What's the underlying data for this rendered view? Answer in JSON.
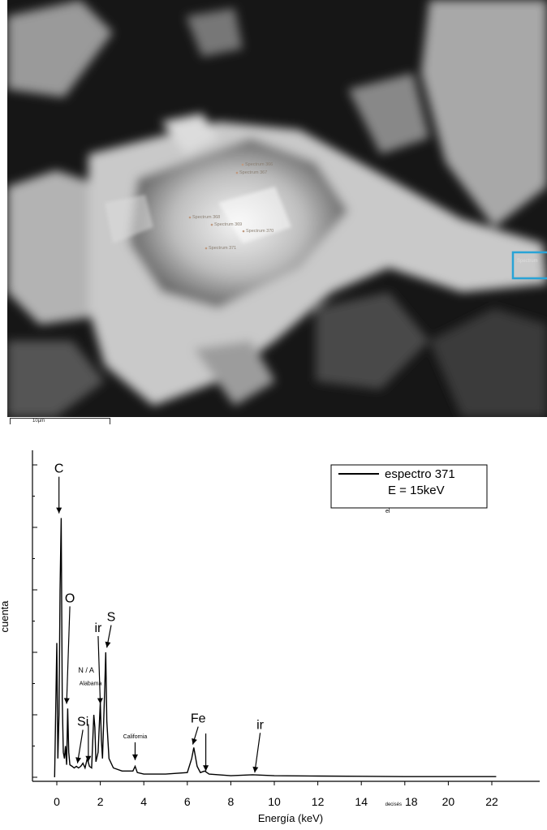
{
  "micrograph": {
    "spot_labels": [
      "Spectrum 366",
      "Spectrum 367",
      "Spectrum 368",
      "Spectrum 369",
      "Spectrum 370",
      "Spectrum 371"
    ],
    "scale_bar_label": "10µm"
  },
  "chart_data": {
    "type": "line",
    "title": "",
    "xlabel": "Energía (keV)",
    "ylabel": "cuenta",
    "xlim": [
      -1,
      22
    ],
    "x_ticks": [
      "0",
      "2",
      "4",
      "6",
      "8",
      "10",
      "12",
      "14",
      "decisés 18",
      "20",
      "22"
    ],
    "legend": {
      "entries": [
        "espectro 371",
        "E = 15keV"
      ],
      "note": "el",
      "position": "top-right"
    },
    "series": [
      {
        "name": "espectro 371",
        "x": [
          -0.1,
          0.0,
          0.05,
          0.1,
          0.15,
          0.2,
          0.25,
          0.3,
          0.35,
          0.4,
          0.45,
          0.5,
          0.55,
          0.6,
          0.7,
          0.8,
          0.9,
          1.0,
          1.1,
          1.2,
          1.3,
          1.4,
          1.5,
          1.6,
          1.7,
          1.75,
          1.8,
          1.9,
          2.0,
          2.05,
          2.1,
          2.2,
          2.25,
          2.3,
          2.4,
          2.6,
          3.0,
          3.5,
          3.6,
          3.7,
          4.0,
          5.0,
          6.0,
          6.2,
          6.3,
          6.45,
          6.6,
          6.8,
          6.9,
          7.0,
          8.0,
          9.0,
          10.0,
          12.0,
          14.0,
          16.0,
          18.0,
          20.2
        ],
        "y": [
          0.0,
          4.3,
          0.6,
          2.0,
          6.0,
          8.3,
          2.5,
          0.8,
          0.6,
          1.0,
          0.4,
          2.2,
          0.8,
          0.4,
          0.35,
          0.3,
          0.35,
          0.3,
          0.35,
          0.45,
          0.3,
          0.6,
          0.35,
          0.3,
          2.0,
          1.6,
          0.5,
          0.8,
          2.4,
          1.2,
          0.6,
          2.8,
          4.0,
          1.8,
          0.6,
          0.3,
          0.2,
          0.2,
          0.35,
          0.15,
          0.1,
          0.1,
          0.15,
          0.6,
          0.95,
          0.35,
          0.15,
          0.2,
          0.15,
          0.1,
          0.05,
          0.08,
          0.05,
          0.04,
          0.03,
          0.02,
          0.02,
          0.02
        ]
      }
    ],
    "annotations": [
      {
        "text": "C",
        "tx": 0.1,
        "ty": 9.75,
        "ax": 0.1,
        "ay": 8.45
      },
      {
        "text": "O",
        "tx": 0.6,
        "ty": 5.6,
        "ax": 0.45,
        "ay": 2.35
      },
      {
        "text": "S",
        "tx": 2.5,
        "ty": 5.0,
        "ax": 2.3,
        "ay": 4.15
      },
      {
        "text": "ir",
        "tx": 1.9,
        "ty": 4.65,
        "ax": 2.0,
        "ay": 2.35
      },
      {
        "text": "N / A",
        "tx": 1.35,
        "ty": 3.35,
        "ax": null,
        "ay": null
      },
      {
        "text": "Alabama",
        "tx": 1.55,
        "ty": 2.95,
        "ax": null,
        "ay": null
      },
      {
        "text": "Si",
        "tx": 1.2,
        "ty": 1.65,
        "ax": 0.95,
        "ay": 0.45
      },
      {
        "text": "California",
        "tx": 3.6,
        "ty": 1.25,
        "ax": 3.6,
        "ay": 0.55
      },
      {
        "text": "Fe",
        "tx": 6.5,
        "ty": 1.75,
        "ax": 6.25,
        "ay": 1.05
      },
      {
        "text": "ir",
        "tx": 9.35,
        "ty": 1.55,
        "ax": 9.1,
        "ay": 0.15
      }
    ],
    "extra_markers": [
      {
        "x": 1.45,
        "from": 1.7,
        "to": 0.5
      },
      {
        "x": 6.85,
        "from": 1.4,
        "to": 0.2
      }
    ],
    "grid": false
  }
}
